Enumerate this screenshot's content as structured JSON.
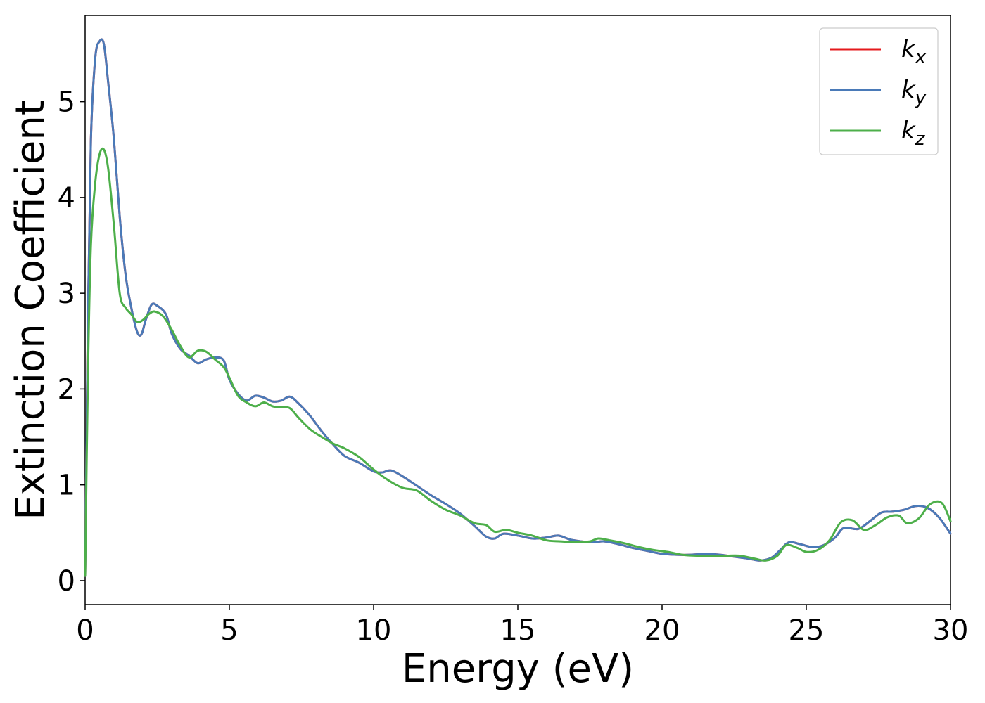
{
  "chart_data": {
    "type": "line",
    "title": "",
    "xlabel": "Energy (eV)",
    "ylabel": "Extinction Coefficient",
    "xlim": [
      0,
      30
    ],
    "ylim": [
      -0.25,
      5.9
    ],
    "xticks": [
      0,
      5,
      10,
      15,
      20,
      25,
      30
    ],
    "xtick_labels": [
      "0",
      "5",
      "10",
      "15",
      "20",
      "25",
      "30"
    ],
    "yticks": [
      0,
      1,
      2,
      3,
      4,
      5
    ],
    "ytick_labels": [
      "0",
      "1",
      "2",
      "3",
      "4",
      "5"
    ],
    "grid": false,
    "legend_position": "top-right",
    "series": [
      {
        "name": "k",
        "subscript": "x",
        "color": "#e41a1c",
        "x": [
          0,
          0.1,
          0.2,
          0.35,
          0.5,
          0.65,
          0.8,
          1.0,
          1.2,
          1.4,
          1.6,
          1.8,
          1.95,
          2.1,
          2.3,
          2.5,
          2.8,
          3.0,
          3.3,
          3.6,
          3.9,
          4.2,
          4.5,
          4.8,
          5.0,
          5.3,
          5.6,
          5.9,
          6.2,
          6.5,
          6.8,
          7.1,
          7.4,
          7.8,
          8.2,
          8.6,
          9.0,
          9.5,
          10.0,
          10.3,
          10.6,
          11.0,
          11.5,
          12.0,
          12.5,
          13.0,
          13.5,
          13.9,
          14.2,
          14.5,
          15.0,
          15.5,
          16.0,
          16.4,
          16.8,
          17.2,
          17.6,
          18.0,
          18.5,
          19.0,
          19.5,
          20.0,
          20.5,
          21.0,
          21.5,
          22.0,
          22.5,
          23.0,
          23.4,
          23.8,
          24.1,
          24.4,
          24.8,
          25.2,
          25.6,
          26.0,
          26.3,
          26.8,
          27.2,
          27.6,
          28.0,
          28.4,
          28.8,
          29.2,
          29.6,
          30.0
        ],
        "values": [
          0.05,
          2.8,
          4.6,
          5.45,
          5.63,
          5.6,
          5.2,
          4.6,
          3.8,
          3.2,
          2.85,
          2.6,
          2.57,
          2.72,
          2.88,
          2.87,
          2.78,
          2.58,
          2.42,
          2.35,
          2.27,
          2.31,
          2.33,
          2.3,
          2.1,
          1.95,
          1.88,
          1.93,
          1.91,
          1.87,
          1.88,
          1.92,
          1.85,
          1.72,
          1.56,
          1.42,
          1.3,
          1.23,
          1.14,
          1.13,
          1.15,
          1.09,
          0.99,
          0.89,
          0.8,
          0.7,
          0.57,
          0.46,
          0.44,
          0.49,
          0.47,
          0.44,
          0.45,
          0.47,
          0.43,
          0.41,
          0.4,
          0.41,
          0.38,
          0.34,
          0.31,
          0.28,
          0.27,
          0.27,
          0.28,
          0.27,
          0.25,
          0.23,
          0.21,
          0.24,
          0.32,
          0.4,
          0.38,
          0.35,
          0.37,
          0.45,
          0.55,
          0.54,
          0.62,
          0.71,
          0.72,
          0.74,
          0.78,
          0.76,
          0.66,
          0.49
        ]
      },
      {
        "name": "k",
        "subscript": "y",
        "color": "#4a7ab8",
        "x": [
          0,
          0.1,
          0.2,
          0.35,
          0.5,
          0.65,
          0.8,
          1.0,
          1.2,
          1.4,
          1.6,
          1.8,
          1.95,
          2.1,
          2.3,
          2.5,
          2.8,
          3.0,
          3.3,
          3.6,
          3.9,
          4.2,
          4.5,
          4.8,
          5.0,
          5.3,
          5.6,
          5.9,
          6.2,
          6.5,
          6.8,
          7.1,
          7.4,
          7.8,
          8.2,
          8.6,
          9.0,
          9.5,
          10.0,
          10.3,
          10.6,
          11.0,
          11.5,
          12.0,
          12.5,
          13.0,
          13.5,
          13.9,
          14.2,
          14.5,
          15.0,
          15.5,
          16.0,
          16.4,
          16.8,
          17.2,
          17.6,
          18.0,
          18.5,
          19.0,
          19.5,
          20.0,
          20.5,
          21.0,
          21.5,
          22.0,
          22.5,
          23.0,
          23.4,
          23.8,
          24.1,
          24.4,
          24.8,
          25.2,
          25.6,
          26.0,
          26.3,
          26.8,
          27.2,
          27.6,
          28.0,
          28.4,
          28.8,
          29.2,
          29.6,
          30.0
        ],
        "values": [
          0.05,
          2.8,
          4.6,
          5.45,
          5.63,
          5.6,
          5.2,
          4.6,
          3.8,
          3.2,
          2.85,
          2.6,
          2.57,
          2.72,
          2.88,
          2.87,
          2.78,
          2.58,
          2.42,
          2.35,
          2.27,
          2.31,
          2.33,
          2.3,
          2.1,
          1.95,
          1.88,
          1.93,
          1.91,
          1.87,
          1.88,
          1.92,
          1.85,
          1.72,
          1.56,
          1.42,
          1.3,
          1.23,
          1.14,
          1.13,
          1.15,
          1.09,
          0.99,
          0.89,
          0.8,
          0.7,
          0.57,
          0.46,
          0.44,
          0.49,
          0.47,
          0.44,
          0.45,
          0.47,
          0.43,
          0.41,
          0.4,
          0.41,
          0.38,
          0.34,
          0.31,
          0.28,
          0.27,
          0.27,
          0.28,
          0.27,
          0.25,
          0.23,
          0.21,
          0.24,
          0.32,
          0.4,
          0.38,
          0.35,
          0.37,
          0.45,
          0.55,
          0.54,
          0.62,
          0.71,
          0.72,
          0.74,
          0.78,
          0.76,
          0.66,
          0.49
        ]
      },
      {
        "name": "k",
        "subscript": "z",
        "color": "#4daf4a",
        "x": [
          0,
          0.1,
          0.2,
          0.35,
          0.5,
          0.65,
          0.8,
          1.0,
          1.2,
          1.4,
          1.6,
          1.8,
          2.0,
          2.2,
          2.4,
          2.7,
          3.0,
          3.3,
          3.6,
          3.9,
          4.2,
          4.5,
          4.8,
          5.0,
          5.3,
          5.6,
          5.9,
          6.2,
          6.5,
          6.8,
          7.1,
          7.4,
          7.8,
          8.2,
          8.6,
          9.0,
          9.5,
          10.0,
          10.5,
          11.0,
          11.5,
          12.0,
          12.5,
          13.0,
          13.5,
          13.9,
          14.2,
          14.6,
          15.0,
          15.5,
          16.0,
          16.5,
          17.0,
          17.5,
          17.8,
          18.2,
          18.7,
          19.2,
          19.7,
          20.2,
          20.7,
          21.2,
          21.7,
          22.2,
          22.7,
          23.2,
          23.6,
          24.0,
          24.3,
          24.7,
          25.0,
          25.4,
          25.8,
          26.2,
          26.6,
          27.0,
          27.4,
          27.8,
          28.2,
          28.5,
          28.9,
          29.3,
          29.7,
          30.0
        ],
        "values": [
          0.05,
          2.2,
          3.5,
          4.15,
          4.45,
          4.5,
          4.3,
          3.7,
          3.0,
          2.85,
          2.78,
          2.7,
          2.72,
          2.78,
          2.81,
          2.76,
          2.62,
          2.45,
          2.33,
          2.4,
          2.39,
          2.31,
          2.23,
          2.12,
          1.93,
          1.86,
          1.82,
          1.86,
          1.82,
          1.81,
          1.8,
          1.7,
          1.58,
          1.5,
          1.43,
          1.38,
          1.29,
          1.16,
          1.05,
          0.97,
          0.94,
          0.83,
          0.74,
          0.68,
          0.6,
          0.58,
          0.51,
          0.53,
          0.5,
          0.47,
          0.42,
          0.41,
          0.4,
          0.41,
          0.44,
          0.42,
          0.39,
          0.35,
          0.32,
          0.3,
          0.27,
          0.26,
          0.26,
          0.26,
          0.26,
          0.23,
          0.21,
          0.26,
          0.37,
          0.34,
          0.3,
          0.32,
          0.42,
          0.61,
          0.63,
          0.53,
          0.58,
          0.66,
          0.68,
          0.6,
          0.65,
          0.8,
          0.81,
          0.62
        ]
      }
    ]
  }
}
